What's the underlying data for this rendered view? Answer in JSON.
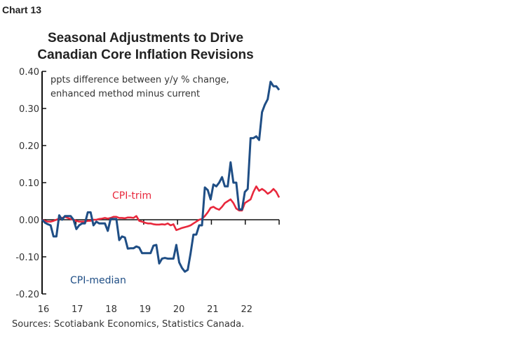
{
  "chart_label": "Chart 13",
  "chart_data": {
    "type": "line",
    "title": [
      "Seasonal Adjustments to Drive",
      "Canadian Core Inflation Revisions"
    ],
    "annotation": [
      "ppts difference between y/y % change,",
      "enhanced method minus current"
    ],
    "source": "Sources: Scotiabank Economics, Statistics Canada.",
    "x_start": "2016-01",
    "x_frequency": "monthly",
    "xlim": [
      "2016-01",
      "2023-01"
    ],
    "x_ticks": [
      "16",
      "17",
      "18",
      "19",
      "20",
      "21",
      "22"
    ],
    "ylim": [
      -0.2,
      0.4
    ],
    "y_ticks": [
      "0.40",
      "0.30",
      "0.20",
      "0.10",
      "0.00",
      "-0.10",
      "-0.20"
    ],
    "grid": false,
    "series": [
      {
        "name": "CPI-median",
        "color": "#1f4e85",
        "values": [
          0,
          -0.008,
          -0.012,
          -0.015,
          -0.045,
          -0.045,
          0.012,
          0,
          0.01,
          0.01,
          0.01,
          0,
          -0.025,
          -0.015,
          -0.01,
          -0.01,
          0.02,
          0.02,
          -0.015,
          -0.005,
          -0.01,
          -0.01,
          -0.01,
          -0.03,
          0.002,
          0.002,
          0.002,
          -0.055,
          -0.045,
          -0.048,
          -0.078,
          -0.077,
          -0.077,
          -0.072,
          -0.075,
          -0.09,
          -0.09,
          -0.09,
          -0.09,
          -0.07,
          -0.068,
          -0.118,
          -0.105,
          -0.103,
          -0.105,
          -0.105,
          -0.105,
          -0.068,
          -0.115,
          -0.13,
          -0.14,
          -0.135,
          -0.09,
          -0.04,
          -0.04,
          -0.015,
          -0.015,
          0.087,
          0.08,
          0.055,
          0.095,
          0.09,
          0.1,
          0.115,
          0.09,
          0.09,
          0.155,
          0.1,
          0.1,
          0.028,
          0.028,
          0.075,
          0.083,
          0.22,
          0.22,
          0.225,
          0.215,
          0.29,
          0.31,
          0.325,
          0.372,
          0.36,
          0.36,
          0.35
        ]
      },
      {
        "name": "CPI-trim",
        "color": "#e8283c",
        "values": [
          0,
          -0.003,
          -0.005,
          -0.005,
          -0.003,
          0,
          0.003,
          0.005,
          0.008,
          0.005,
          0.002,
          0,
          -0.003,
          -0.005,
          -0.005,
          -0.005,
          -0.003,
          -0.003,
          0,
          0,
          0.002,
          0.003,
          0.005,
          0.003,
          0.005,
          0.008,
          0.008,
          0.005,
          0.005,
          0.004,
          0.006,
          0.006,
          0.005,
          0.01,
          -0.003,
          -0.005,
          -0.008,
          -0.01,
          -0.01,
          -0.012,
          -0.013,
          -0.013,
          -0.012,
          -0.013,
          -0.01,
          -0.015,
          -0.012,
          -0.028,
          -0.025,
          -0.022,
          -0.02,
          -0.018,
          -0.015,
          -0.01,
          -0.005,
          0,
          0.002,
          0.01,
          0.02,
          0.032,
          0.035,
          0.03,
          0.027,
          0.035,
          0.045,
          0.05,
          0.055,
          0.045,
          0.03,
          0.025,
          0.025,
          0.045,
          0.05,
          0.055,
          0.075,
          0.09,
          0.078,
          0.083,
          0.078,
          0.07,
          0.075,
          0.083,
          0.075,
          0.06
        ]
      }
    ]
  }
}
